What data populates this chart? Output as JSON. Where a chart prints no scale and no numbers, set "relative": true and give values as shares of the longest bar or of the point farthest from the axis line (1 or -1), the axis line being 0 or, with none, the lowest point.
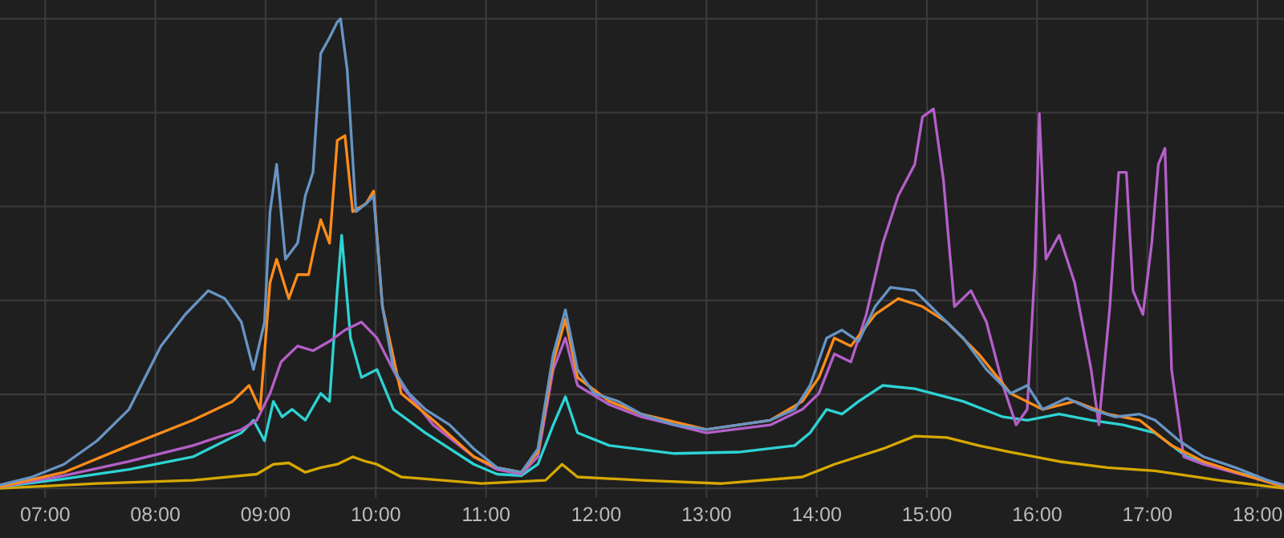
{
  "chart_data": {
    "type": "line",
    "relative": true,
    "grid": true,
    "marker": "none",
    "line_style": "solid",
    "xlim": [
      6.59,
      18.24
    ],
    "xticks": [
      {
        "value": 7,
        "label": "07:00"
      },
      {
        "value": 8,
        "label": "08:00"
      },
      {
        "value": 9,
        "label": "09:00"
      },
      {
        "value": 10,
        "label": "10:00"
      },
      {
        "value": 11,
        "label": "11:00"
      },
      {
        "value": 12,
        "label": "12:00"
      },
      {
        "value": 13,
        "label": "13:00"
      },
      {
        "value": 14,
        "label": "14:00"
      },
      {
        "value": 15,
        "label": "15:00"
      },
      {
        "value": 16,
        "label": "16:00"
      },
      {
        "value": 17,
        "label": "17:00"
      },
      {
        "value": 18,
        "label": "18:00"
      }
    ],
    "series": [
      {
        "color": "#d6a800",
        "x": [
          6.59,
          7.47,
          8.34,
          8.92,
          9.07,
          9.21,
          9.36,
          9.5,
          9.65,
          9.79,
          9.91,
          10.01,
          10.23,
          10.96,
          11.54,
          11.69,
          11.83,
          12.41,
          13.14,
          13.87,
          14.16,
          14.6,
          14.89,
          15.18,
          15.47,
          15.76,
          16.2,
          16.64,
          17.07,
          17.65,
          18.24
        ],
        "values": [
          0,
          0.01,
          0.017,
          0.03,
          0.051,
          0.054,
          0.034,
          0.044,
          0.051,
          0.067,
          0.057,
          0.051,
          0.024,
          0.01,
          0.017,
          0.051,
          0.024,
          0.017,
          0.01,
          0.024,
          0.051,
          0.084,
          0.111,
          0.108,
          0.091,
          0.077,
          0.057,
          0.044,
          0.037,
          0.017,
          0
        ]
      },
      {
        "color": "#2ed3d3",
        "x": [
          6.59,
          7.17,
          7.76,
          8.34,
          8.78,
          8.89,
          8.99,
          9.07,
          9.15,
          9.24,
          9.36,
          9.5,
          9.58,
          9.65,
          9.69,
          9.77,
          9.87,
          10.01,
          10.16,
          10.45,
          10.89,
          11.1,
          11.32,
          11.47,
          11.61,
          11.72,
          11.83,
          12.12,
          12.71,
          13.29,
          13.8,
          13.94,
          14.09,
          14.23,
          14.38,
          14.6,
          14.89,
          15.33,
          15.69,
          15.91,
          16.2,
          16.49,
          16.78,
          17.07,
          17.36,
          17.65,
          18.09,
          18.24
        ],
        "values": [
          0.003,
          0.02,
          0.04,
          0.067,
          0.118,
          0.145,
          0.101,
          0.185,
          0.152,
          0.168,
          0.145,
          0.202,
          0.185,
          0.421,
          0.539,
          0.32,
          0.236,
          0.253,
          0.168,
          0.118,
          0.051,
          0.03,
          0.027,
          0.051,
          0.135,
          0.195,
          0.118,
          0.091,
          0.074,
          0.077,
          0.091,
          0.118,
          0.168,
          0.158,
          0.185,
          0.219,
          0.212,
          0.185,
          0.152,
          0.145,
          0.158,
          0.145,
          0.135,
          0.118,
          0.067,
          0.044,
          0.017,
          0.003
        ]
      },
      {
        "color": "#b45fc8",
        "x": [
          6.59,
          7.17,
          7.76,
          8.34,
          8.78,
          8.92,
          9.04,
          9.14,
          9.29,
          9.43,
          9.58,
          9.72,
          9.87,
          10.01,
          10.23,
          10.52,
          10.89,
          11.1,
          11.32,
          11.47,
          11.61,
          11.72,
          11.83,
          12.12,
          12.41,
          13.0,
          13.58,
          13.87,
          14.02,
          14.16,
          14.31,
          14.45,
          14.6,
          14.74,
          14.89,
          14.96,
          15.06,
          15.15,
          15.25,
          15.4,
          15.54,
          15.69,
          15.81,
          15.91,
          15.98,
          16.02,
          16.08,
          16.2,
          16.34,
          16.49,
          16.56,
          16.66,
          16.74,
          16.81,
          16.87,
          16.96,
          17.04,
          17.1,
          17.16,
          17.22,
          17.33,
          17.51,
          17.94,
          18.24
        ],
        "values": [
          0.003,
          0.027,
          0.057,
          0.091,
          0.125,
          0.145,
          0.202,
          0.269,
          0.303,
          0.293,
          0.313,
          0.337,
          0.354,
          0.32,
          0.219,
          0.135,
          0.067,
          0.04,
          0.03,
          0.067,
          0.253,
          0.32,
          0.219,
          0.178,
          0.152,
          0.118,
          0.135,
          0.168,
          0.202,
          0.286,
          0.269,
          0.37,
          0.522,
          0.623,
          0.69,
          0.791,
          0.808,
          0.657,
          0.387,
          0.421,
          0.354,
          0.219,
          0.135,
          0.168,
          0.471,
          0.798,
          0.488,
          0.539,
          0.438,
          0.253,
          0.135,
          0.387,
          0.673,
          0.673,
          0.421,
          0.37,
          0.522,
          0.69,
          0.724,
          0.253,
          0.067,
          0.051,
          0.024,
          0.003
        ]
      },
      {
        "color": "#ff8c1a",
        "x": [
          6.59,
          7.17,
          7.76,
          8.34,
          8.7,
          8.85,
          8.95,
          9.04,
          9.1,
          9.21,
          9.29,
          9.39,
          9.45,
          9.5,
          9.58,
          9.65,
          9.72,
          9.79,
          9.91,
          9.98,
          10.06,
          10.23,
          10.52,
          10.89,
          11.1,
          11.32,
          11.47,
          11.61,
          11.72,
          11.83,
          12.12,
          12.41,
          13.0,
          13.58,
          13.87,
          14.02,
          14.16,
          14.31,
          14.53,
          14.74,
          14.96,
          15.18,
          15.47,
          15.76,
          16.05,
          16.34,
          16.64,
          16.93,
          17.22,
          17.51,
          17.94,
          18.24
        ],
        "values": [
          0.003,
          0.034,
          0.091,
          0.145,
          0.185,
          0.219,
          0.168,
          0.438,
          0.488,
          0.404,
          0.455,
          0.455,
          0.522,
          0.572,
          0.522,
          0.741,
          0.751,
          0.589,
          0.606,
          0.633,
          0.387,
          0.202,
          0.145,
          0.067,
          0.044,
          0.034,
          0.077,
          0.269,
          0.36,
          0.236,
          0.185,
          0.158,
          0.125,
          0.145,
          0.185,
          0.236,
          0.32,
          0.303,
          0.37,
          0.404,
          0.387,
          0.354,
          0.286,
          0.202,
          0.168,
          0.185,
          0.158,
          0.145,
          0.091,
          0.057,
          0.024,
          0.003
        ]
      },
      {
        "color": "#6794c4",
        "x": [
          6.59,
          6.88,
          7.17,
          7.47,
          7.76,
          8.05,
          8.27,
          8.48,
          8.63,
          8.78,
          8.89,
          8.99,
          9.04,
          9.1,
          9.18,
          9.29,
          9.36,
          9.43,
          9.5,
          9.58,
          9.65,
          9.68,
          9.74,
          9.82,
          9.91,
          9.98,
          10.06,
          10.16,
          10.3,
          10.45,
          10.67,
          10.89,
          11.1,
          11.32,
          11.47,
          11.61,
          11.72,
          11.83,
          11.98,
          12.2,
          12.41,
          12.71,
          13.0,
          13.29,
          13.58,
          13.8,
          13.94,
          14.09,
          14.23,
          14.38,
          14.53,
          14.67,
          14.89,
          15.11,
          15.33,
          15.54,
          15.76,
          15.91,
          16.05,
          16.27,
          16.49,
          16.71,
          16.93,
          17.07,
          17.29,
          17.51,
          17.8,
          18.09,
          18.24
        ],
        "values": [
          0.007,
          0.024,
          0.051,
          0.101,
          0.168,
          0.303,
          0.37,
          0.421,
          0.404,
          0.354,
          0.253,
          0.354,
          0.589,
          0.69,
          0.488,
          0.522,
          0.623,
          0.673,
          0.926,
          0.96,
          0.993,
          1,
          0.892,
          0.589,
          0.606,
          0.623,
          0.387,
          0.253,
          0.202,
          0.168,
          0.135,
          0.084,
          0.044,
          0.034,
          0.084,
          0.286,
          0.38,
          0.253,
          0.202,
          0.185,
          0.158,
          0.135,
          0.125,
          0.135,
          0.145,
          0.168,
          0.219,
          0.32,
          0.337,
          0.313,
          0.387,
          0.428,
          0.421,
          0.37,
          0.32,
          0.253,
          0.202,
          0.219,
          0.168,
          0.192,
          0.168,
          0.152,
          0.158,
          0.145,
          0.101,
          0.067,
          0.044,
          0.017,
          0.007
        ]
      }
    ]
  }
}
